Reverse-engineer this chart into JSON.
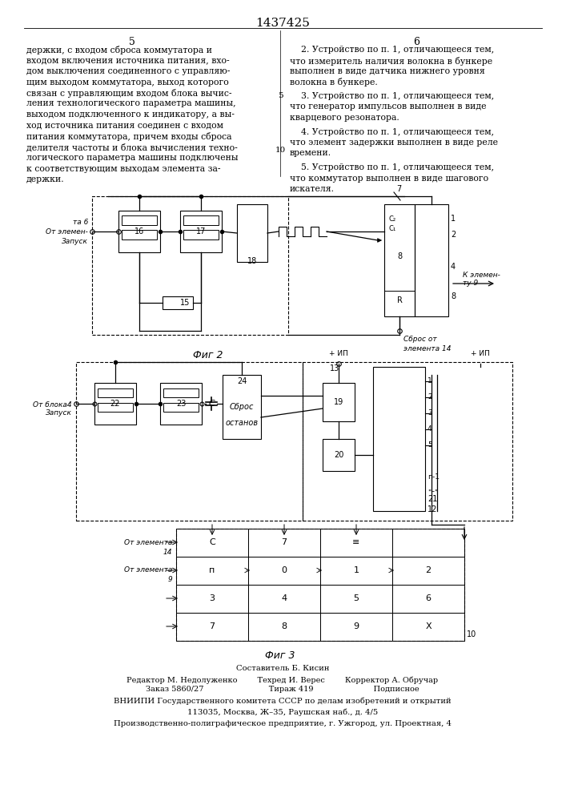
{
  "title": "1437425",
  "bg_color": "#ffffff",
  "text_color": "#000000",
  "page_col_left": "5",
  "page_col_right": "6",
  "left_text_lines": [
    "держки, с входом сброса коммутатора и",
    "входом включения источника питания, вхо-",
    "дом выключения соединенного с управляю-",
    "щим выходом коммутатора, выход которого",
    "связан с управляющим входом блока вычис-",
    "ления технологического параметра машины,",
    "выходом подключенного к индикатору, а вы-",
    "ход источника питания соединен с входом",
    "питания коммутатора, причем входы сброса",
    "делителя частоты и блока вычисления техно-",
    "логического параметра машины подключены",
    "к соответствующим выходам элемента за-",
    "держки."
  ],
  "right_text_blocks": [
    {
      "lines": [
        "    2. Устройство по п. 1, отличающееся тем,",
        "что измеритель наличия волокна в бункере",
        "выполнен в виде датчика нижнего уровня",
        "волокна в бункере."
      ]
    },
    {
      "lines": [
        "    3. Устройство по п. 1, отличающееся тем,",
        "что генератор импульсов выполнен в виде",
        "кварцевого резонатора."
      ]
    },
    {
      "lines": [
        "    4. Устройство по п. 1, отличающееся тем,",
        "что элемент задержки выполнен в виде реле",
        "времени."
      ]
    },
    {
      "lines": [
        "    5. Устройство по п. 1, отличающееся тем,",
        "что коммутатор выполнен в виде шагового",
        "искателя."
      ]
    }
  ],
  "fig2_label": "Фиг 2",
  "fig3_label": "Фиг 3",
  "footer_lines": [
    "Составитель Б. Кисин",
    "Редактор М. Недолуженко        Техред И. Верес        Корректор А. Обручар",
    "Заказ 5860/27                          Тираж 419                        Подписное",
    "ВНИИПИ Государственного комитета СССР по делам изобретений и открытий",
    "113035, Москва, Ж–35, Раушская наб., д. 4/5",
    "Производственно-полиграфическое предприятие, г. Ужгород, ул. Проектная, 4"
  ]
}
